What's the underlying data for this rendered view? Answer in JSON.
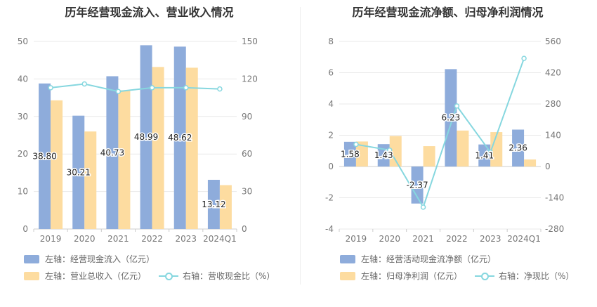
{
  "charts": [
    {
      "title": "历年经营现金流入、营业收入情况",
      "chart_data": {
        "type": "bar",
        "categories": [
          "2019",
          "2020",
          "2021",
          "2022",
          "2023",
          "2024Q1"
        ],
        "left_axis": {
          "min": 0,
          "max": 50,
          "ticks": [
            "0",
            "10",
            "20",
            "30",
            "40",
            "50"
          ]
        },
        "right_axis": {
          "min": 0,
          "max": 150,
          "ticks": [
            "0",
            "30",
            "60",
            "90",
            "120",
            "150"
          ]
        },
        "series": [
          {
            "name": "左轴：经营现金流入（亿元）",
            "axis": "left",
            "kind": "bar",
            "color": "#8eacdb",
            "values": [
              38.8,
              30.21,
              40.73,
              48.99,
              48.62,
              13.12
            ],
            "labels": [
              "38.80",
              "30.21",
              "40.73",
              "48.99",
              "48.62",
              "13.12"
            ]
          },
          {
            "name": "左轴：营业总收入（亿元）",
            "axis": "left",
            "kind": "bar",
            "color": "#fddca0",
            "values": [
              34.3,
              26.0,
              37.0,
              43.2,
              43.0,
              11.7
            ]
          },
          {
            "name": "右轴：营收现金比（%）",
            "axis": "right",
            "kind": "line",
            "color": "#86d7df",
            "values": [
              113,
              116,
              110,
              113,
              113,
              112
            ]
          }
        ]
      }
    },
    {
      "title": "历年经营现金流净额、归母净利润情况",
      "chart_data": {
        "type": "bar",
        "categories": [
          "2019",
          "2020",
          "2021",
          "2022",
          "2023",
          "2024Q1"
        ],
        "left_axis": {
          "min": -4,
          "max": 8,
          "ticks": [
            "-4",
            "-2",
            "0",
            "2",
            "4",
            "6",
            "8"
          ]
        },
        "right_axis": {
          "min": -280,
          "max": 560,
          "ticks": [
            "-280",
            "-140",
            "0",
            "140",
            "280",
            "420",
            "560"
          ]
        },
        "series": [
          {
            "name": "左轴：经营活动现金流净额（亿元）",
            "axis": "left",
            "kind": "bar",
            "color": "#8eacdb",
            "values": [
              1.58,
              1.43,
              -2.37,
              6.23,
              1.41,
              2.36
            ],
            "labels": [
              "1.58",
              "1.43",
              "-2.37",
              "6.23",
              "1.41",
              "2.36"
            ]
          },
          {
            "name": "左轴：归母净利润（亿元）",
            "axis": "left",
            "kind": "bar",
            "color": "#fddca0",
            "values": [
              1.6,
              1.95,
              1.3,
              2.3,
              2.2,
              0.45
            ]
          },
          {
            "name": "右轴：净现比（%）",
            "axis": "right",
            "kind": "line",
            "color": "#86d7df",
            "values": [
              99,
              73,
              -182,
              271,
              64,
              484
            ]
          }
        ]
      }
    }
  ]
}
